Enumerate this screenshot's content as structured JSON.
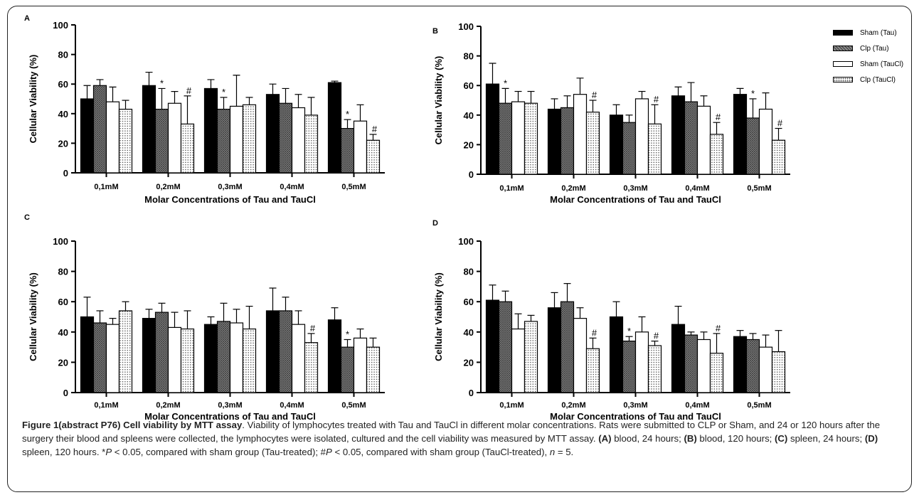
{
  "legend": [
    {
      "name": "Sham (Tau)",
      "pattern": "solid"
    },
    {
      "name": "Clp (Tau)",
      "pattern": "cross"
    },
    {
      "name": "Sham (TauCl)",
      "pattern": "white"
    },
    {
      "name": "Clp (TauCl)",
      "pattern": "dots"
    }
  ],
  "colors": {
    "black": "#000000",
    "cross_bg": "#8a8a8a",
    "cross_line": "#3a3a3a",
    "dot": "#444444",
    "white": "#ffffff"
  },
  "chart_data": [
    {
      "panel": "A",
      "type": "bar",
      "categories": [
        "0,1mM",
        "0,2mM",
        "0,3mM",
        "0,4mM",
        "0,5mM"
      ],
      "ylabel": "Cellular Viability (%)",
      "xlabel": "Molar Concentrations of Tau and TauCl",
      "ylim": [
        0,
        100
      ],
      "yticks": [
        "0",
        "20",
        "40",
        "60",
        "80",
        "100"
      ],
      "series": [
        {
          "name": "Sham (Tau)",
          "values": [
            50,
            59,
            57,
            53,
            61
          ],
          "errors": [
            9,
            9,
            6,
            7,
            1
          ]
        },
        {
          "name": "Clp (Tau)",
          "values": [
            59,
            43,
            43,
            47,
            30
          ],
          "errors": [
            4,
            14,
            8,
            10,
            6
          ]
        },
        {
          "name": "Sham (TauCl)",
          "values": [
            48,
            47,
            45,
            44,
            35
          ],
          "errors": [
            10,
            8,
            21,
            9,
            11
          ]
        },
        {
          "name": "Clp (TauCl)",
          "values": [
            43,
            33,
            46,
            39,
            22
          ],
          "errors": [
            6,
            19,
            5,
            12,
            4
          ]
        }
      ],
      "annotations": [
        {
          "category": 1,
          "series": 1,
          "text": "*"
        },
        {
          "category": 1,
          "series": 3,
          "text": "#"
        },
        {
          "category": 2,
          "series": 1,
          "text": "*"
        },
        {
          "category": 4,
          "series": 1,
          "text": "*"
        },
        {
          "category": 4,
          "series": 3,
          "text": "#"
        }
      ]
    },
    {
      "panel": "B",
      "type": "bar",
      "categories": [
        "0,1mM",
        "0,2mM",
        "0,3mM",
        "0,4mM",
        "0,5mM"
      ],
      "ylabel": "Cellular Viability (%)",
      "xlabel": "Molar Concentrations of Tau and TauCl",
      "ylim": [
        0,
        100
      ],
      "yticks": [
        "0",
        "20",
        "40",
        "60",
        "80",
        "100"
      ],
      "series": [
        {
          "name": "Sham (Tau)",
          "values": [
            61,
            44,
            40,
            53,
            54
          ],
          "errors": [
            14,
            7,
            7,
            6,
            4
          ]
        },
        {
          "name": "Clp (Tau)",
          "values": [
            48,
            45,
            35,
            49,
            38
          ],
          "errors": [
            10,
            8,
            5,
            13,
            13
          ]
        },
        {
          "name": "Sham (TauCl)",
          "values": [
            49,
            54,
            51,
            46,
            44
          ],
          "errors": [
            7,
            11,
            5,
            7,
            11
          ]
        },
        {
          "name": "Clp (TauCl)",
          "values": [
            48,
            42,
            34,
            27,
            23
          ],
          "errors": [
            8,
            8,
            13,
            8,
            8
          ]
        }
      ],
      "annotations": [
        {
          "category": 0,
          "series": 1,
          "text": "*"
        },
        {
          "category": 1,
          "series": 3,
          "text": "#"
        },
        {
          "category": 2,
          "series": 3,
          "text": "#"
        },
        {
          "category": 3,
          "series": 3,
          "text": "#"
        },
        {
          "category": 4,
          "series": 1,
          "text": "*"
        },
        {
          "category": 4,
          "series": 3,
          "text": "#"
        }
      ]
    },
    {
      "panel": "C",
      "type": "bar",
      "categories": [
        "0,1mM",
        "0,2mM",
        "0,3mM",
        "0,4mM",
        "0,5mM"
      ],
      "ylabel": "Cellular Viability (%)",
      "xlabel": "Molar Concentrations of Tau and TauCl",
      "ylim": [
        0,
        100
      ],
      "yticks": [
        "0",
        "20",
        "40",
        "60",
        "80",
        "100"
      ],
      "series": [
        {
          "name": "Sham (Tau)",
          "values": [
            50,
            49,
            45,
            54,
            48
          ],
          "errors": [
            13,
            6,
            5,
            15,
            8
          ]
        },
        {
          "name": "Clp (Tau)",
          "values": [
            46,
            53,
            47,
            54,
            30
          ],
          "errors": [
            8,
            6,
            12,
            9,
            5
          ]
        },
        {
          "name": "Sham (TauCl)",
          "values": [
            45,
            43,
            46,
            45,
            36
          ],
          "errors": [
            4,
            10,
            9,
            9,
            6
          ]
        },
        {
          "name": "Clp (TauCl)",
          "values": [
            54,
            42,
            42,
            33,
            30
          ],
          "errors": [
            6,
            12,
            15,
            6,
            6
          ]
        }
      ],
      "annotations": [
        {
          "category": 3,
          "series": 3,
          "text": "#"
        },
        {
          "category": 4,
          "series": 1,
          "text": "*"
        }
      ]
    },
    {
      "panel": "D",
      "type": "bar",
      "categories": [
        "0,1mM",
        "0,2mM",
        "0,3mM",
        "0,4mM",
        "0,5mM"
      ],
      "ylabel": "Cellular Viability (%)",
      "xlabel": "Molar Concentrations of Tau and TauCl",
      "ylim": [
        0,
        100
      ],
      "yticks": [
        "0",
        "20",
        "40",
        "60",
        "80",
        "100"
      ],
      "series": [
        {
          "name": "Sham (Tau)",
          "values": [
            61,
            56,
            50,
            45,
            37
          ],
          "errors": [
            10,
            10,
            10,
            12,
            4
          ]
        },
        {
          "name": "Clp (Tau)",
          "values": [
            60,
            60,
            34,
            38,
            35
          ],
          "errors": [
            7,
            12,
            3,
            2,
            4
          ]
        },
        {
          "name": "Sham (TauCl)",
          "values": [
            42,
            49,
            40,
            35,
            30
          ],
          "errors": [
            10,
            7,
            10,
            5,
            8
          ]
        },
        {
          "name": "Clp (TauCl)",
          "values": [
            47,
            29,
            31,
            26,
            27
          ],
          "errors": [
            4,
            7,
            3,
            13,
            14
          ]
        }
      ],
      "annotations": [
        {
          "category": 1,
          "series": 3,
          "text": "#"
        },
        {
          "category": 2,
          "series": 1,
          "text": "*"
        },
        {
          "category": 2,
          "series": 3,
          "text": "#"
        },
        {
          "category": 3,
          "series": 3,
          "text": "#"
        }
      ]
    }
  ],
  "caption": {
    "title": "Figure 1(abstract P76) Cell viability by MTT assay",
    "body": ". Viability of lymphocytes treated with Tau and TauCl in different molar concentrations. Rats were submitted to CLP or Sham, and 24 or 120 hours after the surgery their blood and spleens were collected, the lymphocytes were isolated, cultured and the cell viability was measured by MTT assay. ",
    "a_label": "(A)",
    "a_text": " blood, 24 hours; ",
    "b_label": "(B)",
    "b_text": " blood, 120 hours; ",
    "c_label": "(C)",
    "c_text": " spleen, 24 hours; ",
    "d_label": "(D)",
    "d_text": " spleen, 120 hours. ",
    "stat_star": "*",
    "stat_p1": "P",
    "stat_t1": " < 0.05, compared with sham group (Tau-treated); #",
    "stat_p2": "P",
    "stat_t2": " < 0.05, compared with sham group (TauCl-treated), ",
    "stat_n": "n",
    "stat_t3": " = 5."
  }
}
